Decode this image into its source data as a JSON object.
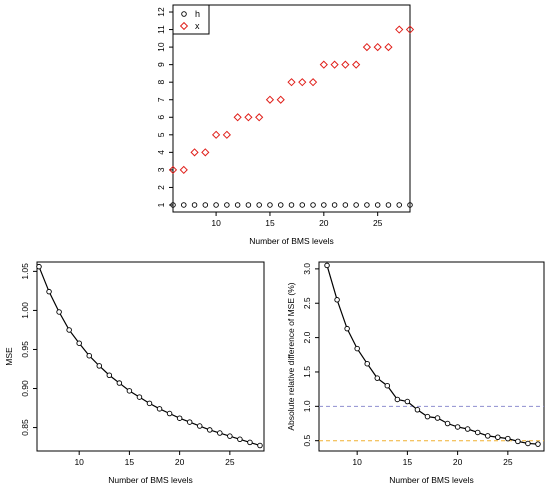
{
  "chart_data": [
    {
      "type": "scatter",
      "title": "",
      "xlabel": "Number of BMS levels",
      "ylabel": "",
      "xlim": [
        6,
        28
      ],
      "ylim": [
        0.6,
        12.4
      ],
      "xticks": [
        10,
        15,
        20,
        25
      ],
      "yticks": [
        1,
        2,
        3,
        4,
        5,
        6,
        7,
        8,
        9,
        10,
        11,
        12
      ],
      "legend": {
        "position": "top-left",
        "entries": [
          {
            "label": "h",
            "marker": "circle",
            "color": "#000000"
          },
          {
            "label": "x",
            "marker": "diamond",
            "color": "#e0201b"
          }
        ]
      },
      "x": [
        6,
        7,
        8,
        9,
        10,
        11,
        12,
        13,
        14,
        15,
        16,
        17,
        18,
        19,
        20,
        21,
        22,
        23,
        24,
        25,
        26,
        27,
        28
      ],
      "series": [
        {
          "name": "h",
          "marker": "circle",
          "color": "#000000",
          "values": [
            1,
            1,
            1,
            1,
            1,
            1,
            1,
            1,
            1,
            1,
            1,
            1,
            1,
            1,
            1,
            1,
            1,
            1,
            1,
            1,
            1,
            1,
            1
          ]
        },
        {
          "name": "x",
          "marker": "diamond",
          "color": "#e0201b",
          "values": [
            3,
            3,
            4,
            4,
            5,
            5,
            6,
            6,
            6,
            7,
            7,
            8,
            8,
            8,
            9,
            9,
            9,
            9,
            10,
            10,
            10,
            11,
            11
          ]
        }
      ]
    },
    {
      "type": "line",
      "title": "",
      "xlabel": "Number of BMS levels",
      "ylabel": "MSE",
      "xlim": [
        5.8,
        28.4
      ],
      "ylim": [
        0.82,
        1.062
      ],
      "xticks": [
        10,
        15,
        20,
        25
      ],
      "yticks": [
        "0.85",
        "0.90",
        "0.95",
        "1.00",
        "1.05"
      ],
      "x": [
        6,
        7,
        8,
        9,
        10,
        11,
        12,
        13,
        14,
        15,
        16,
        17,
        18,
        19,
        20,
        21,
        22,
        23,
        24,
        25,
        26,
        27,
        28
      ],
      "series": [
        {
          "marker": "circle",
          "color": "#000000",
          "values": [
            1.056,
            1.024,
            0.998,
            0.975,
            0.958,
            0.942,
            0.929,
            0.917,
            0.907,
            0.897,
            0.889,
            0.881,
            0.874,
            0.868,
            0.862,
            0.857,
            0.852,
            0.847,
            0.843,
            0.839,
            0.835,
            0.831,
            0.827
          ]
        }
      ]
    },
    {
      "type": "line",
      "title": "",
      "xlabel": "Number of BMS levels",
      "ylabel": "Absolute relative difference of MSE (%)",
      "xlim": [
        6.2,
        28.6
      ],
      "ylim": [
        0.35,
        3.1
      ],
      "xticks": [
        10,
        15,
        20,
        25
      ],
      "yticks": [
        "0.5",
        "1.0",
        "1.5",
        "2.0",
        "2.5",
        "3.0"
      ],
      "reference_lines": [
        {
          "y": 1.0,
          "color": "#8f8fcf",
          "style": "dashed"
        },
        {
          "y": 0.5,
          "color": "#f0b030",
          "style": "dashed"
        }
      ],
      "x": [
        7,
        8,
        9,
        10,
        11,
        12,
        13,
        14,
        15,
        16,
        17,
        18,
        19,
        20,
        21,
        22,
        23,
        24,
        25,
        26,
        27,
        28
      ],
      "series": [
        {
          "marker": "circle",
          "color": "#000000",
          "values": [
            3.05,
            2.55,
            2.13,
            1.84,
            1.62,
            1.41,
            1.3,
            1.1,
            1.07,
            0.95,
            0.85,
            0.83,
            0.75,
            0.7,
            0.67,
            0.62,
            0.57,
            0.55,
            0.53,
            0.49,
            0.46,
            0.45
          ]
        }
      ]
    }
  ]
}
